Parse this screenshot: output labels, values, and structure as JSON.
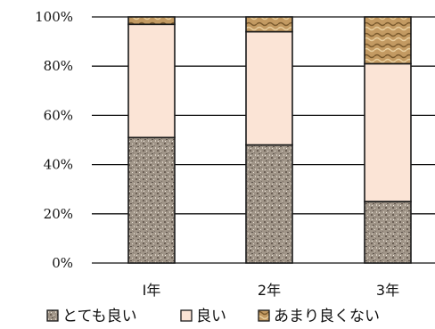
{
  "chart_data": {
    "type": "bar",
    "stacked": true,
    "percent": true,
    "categories": [
      "Ⅰ年",
      "2年",
      "3年"
    ],
    "series": [
      {
        "name": "とても良い",
        "values": [
          51,
          48,
          25
        ]
      },
      {
        "name": "良い",
        "values": [
          46,
          46,
          56
        ]
      },
      {
        "name": "あまり良くない",
        "values": [
          3,
          6,
          19
        ]
      }
    ],
    "y_ticks": [
      "0%",
      "20%",
      "40%",
      "60%",
      "80%",
      "100%"
    ],
    "ylim": [
      0,
      100
    ],
    "grid": true,
    "legend_position": "bottom",
    "colors": {
      "とても良い": "#9c8f82",
      "良い": "#fbe4d6",
      "あまり良くない": "#b8915a"
    }
  }
}
